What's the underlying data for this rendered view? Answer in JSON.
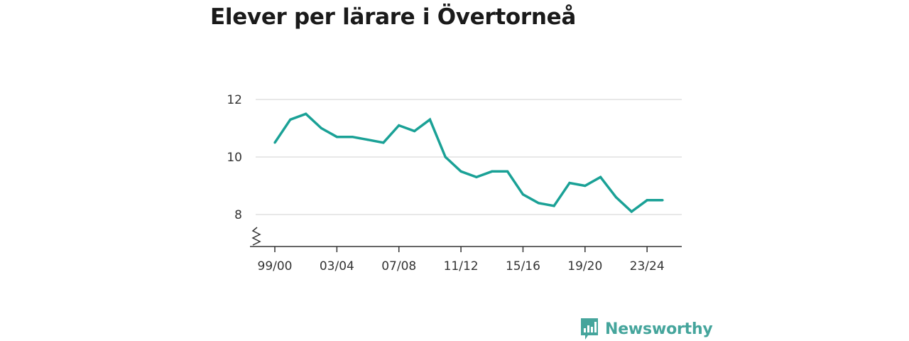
{
  "title": "Elever per lärare i Övertorneå",
  "brand": {
    "name": "Newsworthy",
    "color": "#45a59c",
    "icon": "newsworthy-logo-icon"
  },
  "colors": {
    "line": "#1aa196",
    "grid": "#d9d9d9",
    "axis": "#333333"
  },
  "chart_data": {
    "type": "line",
    "title": "Elever per lärare i Övertorneå",
    "xlabel": "",
    "ylabel": "",
    "ylim": [
      7,
      12.4
    ],
    "y_axis_break": true,
    "yticks": [
      8,
      10,
      12
    ],
    "grid": true,
    "x": [
      "99/00",
      "00/01",
      "01/02",
      "02/03",
      "03/04",
      "04/05",
      "05/06",
      "06/07",
      "07/08",
      "08/09",
      "09/10",
      "10/11",
      "11/12",
      "12/13",
      "13/14",
      "14/15",
      "15/16",
      "16/17",
      "17/18",
      "18/19",
      "19/20",
      "20/21",
      "21/22",
      "22/23",
      "23/24",
      "24/25"
    ],
    "xticks": [
      "99/00",
      "03/04",
      "07/08",
      "11/12",
      "15/16",
      "19/20",
      "23/24"
    ],
    "series": [
      {
        "values": [
          10.5,
          11.3,
          11.5,
          11.0,
          10.7,
          10.7,
          10.6,
          10.5,
          11.1,
          10.9,
          11.3,
          10.0,
          9.5,
          9.3,
          9.5,
          9.5,
          8.7,
          8.4,
          8.3,
          9.1,
          9.0,
          9.3,
          8.6,
          8.1,
          8.5,
          8.5
        ]
      }
    ]
  }
}
